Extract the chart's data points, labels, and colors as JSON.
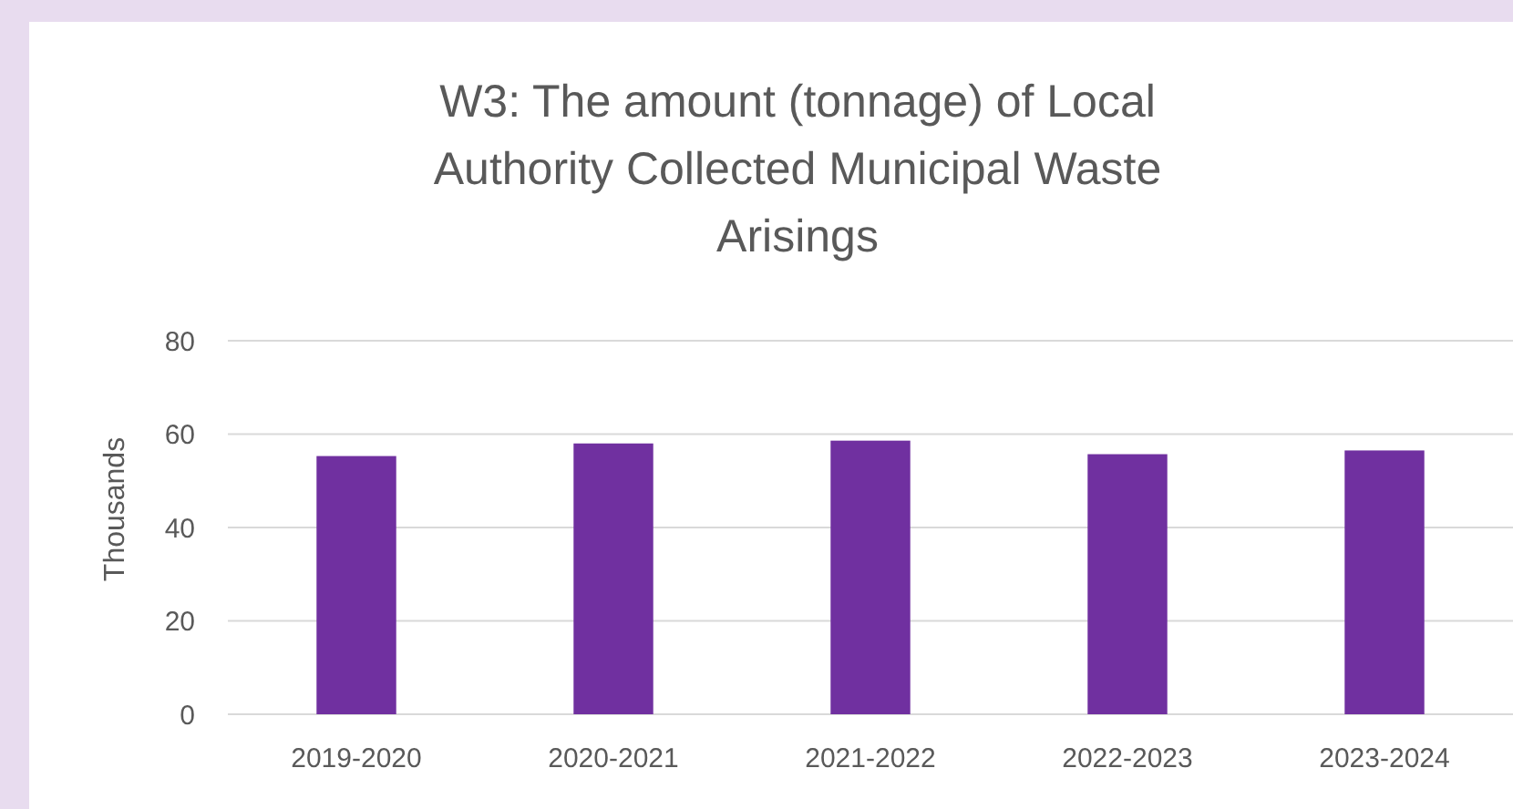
{
  "chart_data": {
    "type": "bar",
    "title": "W3: The amount (tonnage) of Local Authority Collected Municipal Waste Arisings",
    "ylabel": "Thousands",
    "categories": [
      "2019-2020",
      "2020-2021",
      "2021-2022",
      "2022-2023",
      "2023-2024"
    ],
    "values": [
      55.3,
      58.0,
      58.6,
      55.7,
      56.5
    ],
    "color": "#7030a0",
    "ylim": [
      0,
      80
    ],
    "yticks": [
      0,
      20,
      40,
      60,
      80
    ],
    "grid": "y"
  }
}
